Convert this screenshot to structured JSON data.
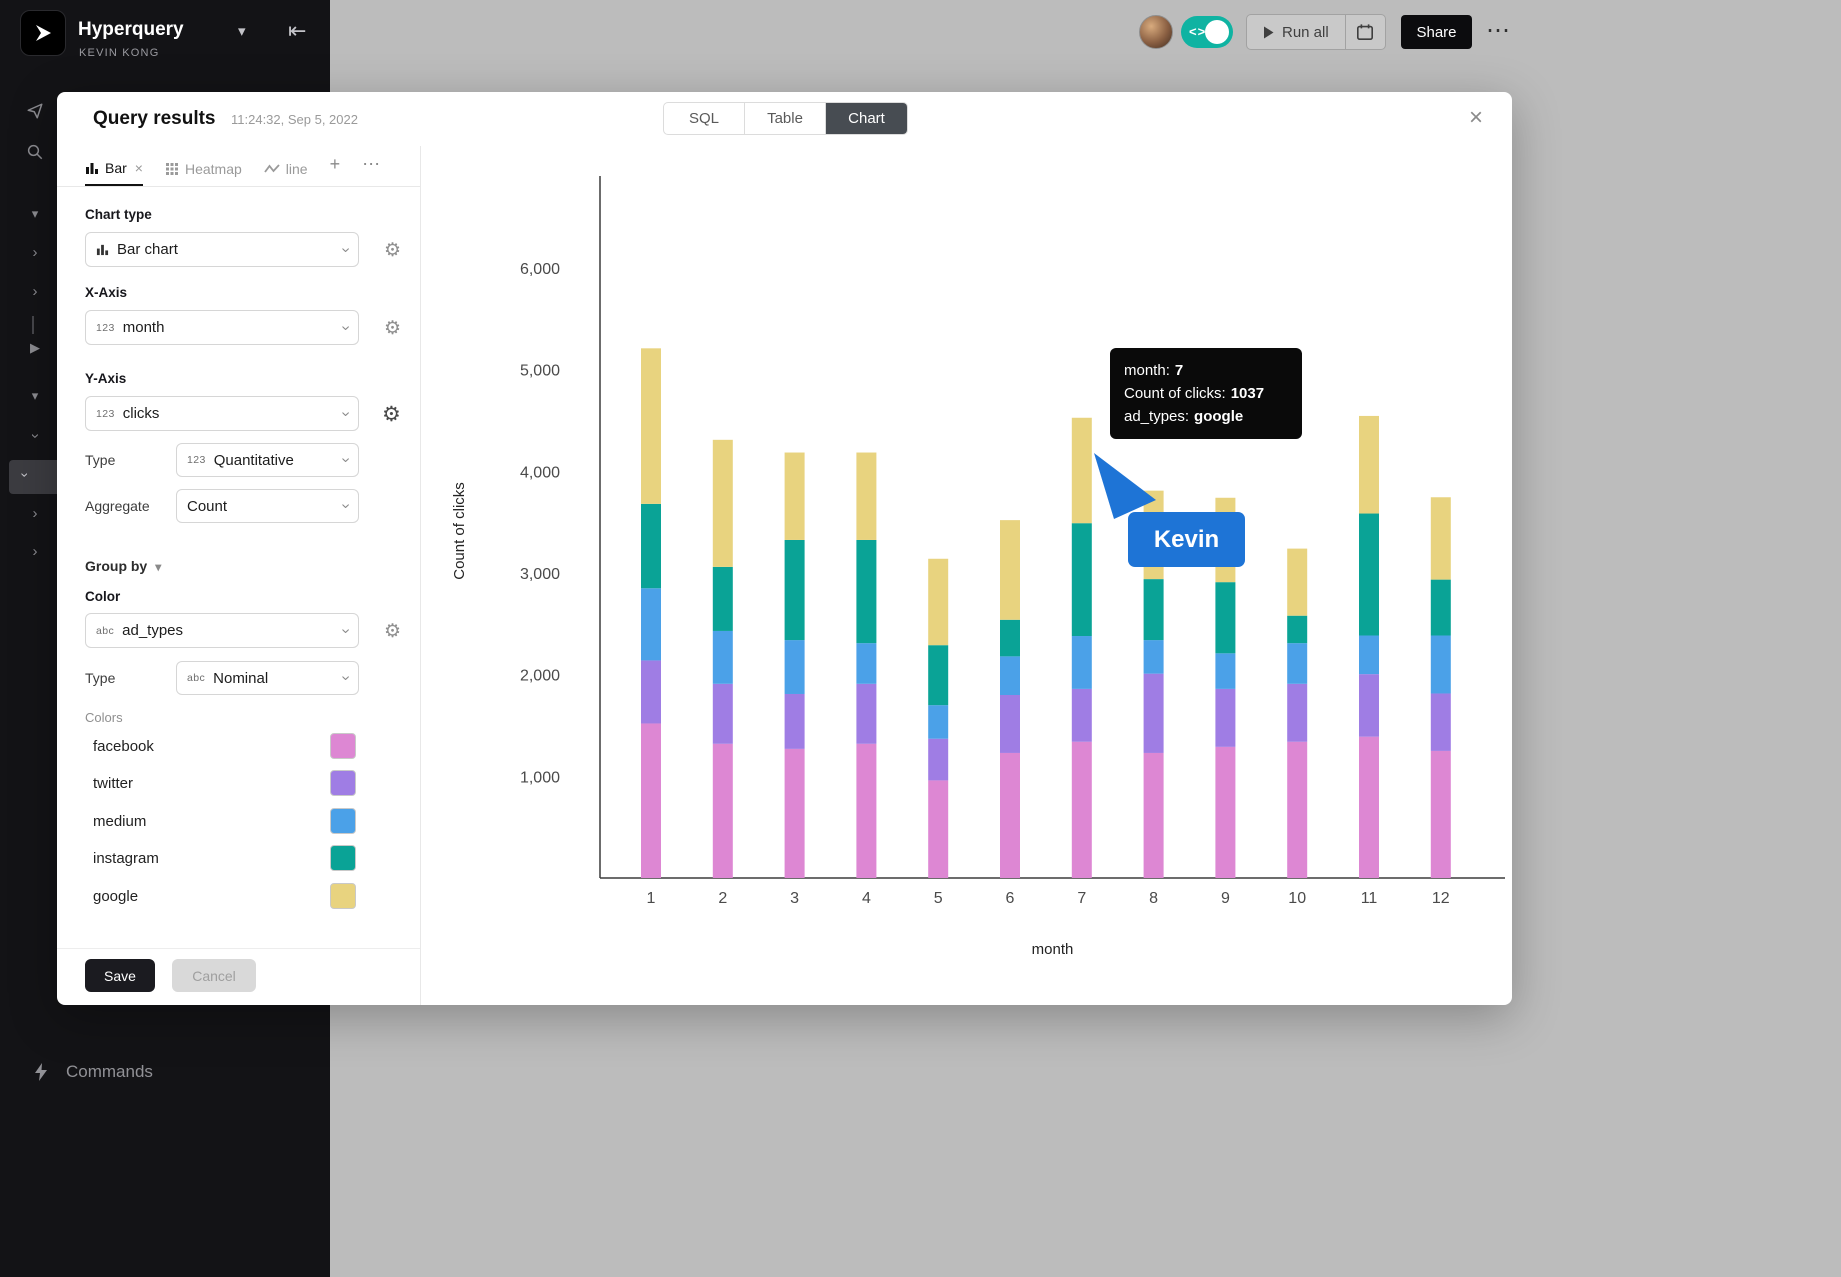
{
  "topbar": {
    "app_name": "Hyperquery",
    "workspace": "KEVIN KONG",
    "run_all": "Run all",
    "share": "Share",
    "more": "⋯"
  },
  "sidebar": {
    "commands": "Commands"
  },
  "modal": {
    "title": "Query results",
    "timestamp": "11:24:32, Sep 5, 2022",
    "tabs": {
      "sql": "SQL",
      "table": "Table",
      "chart": "Chart"
    },
    "close": "×"
  },
  "config": {
    "tab_bar": "Bar",
    "tab_bar_close": "×",
    "tab_heatmap": "Heatmap",
    "tab_line": "line",
    "tab_add": "+",
    "tab_more": "⋯",
    "chart_type_label": "Chart type",
    "chart_type_value": "Bar chart",
    "x_axis_label": "X-Axis",
    "x_axis_prefix": "123",
    "x_axis_value": "month",
    "y_axis_label": "Y-Axis",
    "y_axis_prefix": "123",
    "y_axis_value": "clicks",
    "type_label": "Type",
    "y_type_prefix": "123",
    "y_type_value": "Quantitative",
    "aggregate_label": "Aggregate",
    "aggregate_value": "Count",
    "group_by_label": "Group by",
    "color_label": "Color",
    "color_prefix": "abc",
    "color_value": "ad_types",
    "color_type_label": "Type",
    "color_type_prefix": "abc",
    "color_type_value": "Nominal",
    "colors_label": "Colors",
    "legend": [
      {
        "label": "facebook",
        "color": "#dd87d3"
      },
      {
        "label": "twitter",
        "color": "#9f7de4"
      },
      {
        "label": "medium",
        "color": "#4ba1e8"
      },
      {
        "label": "instagram",
        "color": "#0aa396"
      },
      {
        "label": "google",
        "color": "#e8d37f"
      }
    ],
    "save": "Save",
    "cancel": "Cancel"
  },
  "tooltip": {
    "lines": [
      {
        "key": "month:",
        "value": "7"
      },
      {
        "key": "Count of clicks:",
        "value": "1037"
      },
      {
        "key": "ad_types:",
        "value": "google"
      }
    ]
  },
  "cursor": {
    "name": "Kevin",
    "color": "#1e74d6"
  },
  "chart_data": {
    "type": "bar",
    "stacked": true,
    "title": "",
    "xlabel": "month",
    "ylabel": "Count of clicks",
    "categories": [
      "1",
      "2",
      "3",
      "4",
      "5",
      "6",
      "7",
      "8",
      "9",
      "10",
      "11",
      "12"
    ],
    "yticks": [
      1000,
      2000,
      3000,
      4000,
      5000,
      6000
    ],
    "ylim": [
      0,
      6000
    ],
    "legend_position": "left-panel",
    "grid": false,
    "series": [
      {
        "name": "facebook",
        "color": "#dd87d3",
        "values": [
          1520,
          1320,
          1270,
          1320,
          960,
          1230,
          1340,
          1230,
          1290,
          1340,
          1390,
          1250
        ]
      },
      {
        "name": "twitter",
        "color": "#9f7de4",
        "values": [
          620,
          590,
          540,
          590,
          410,
          570,
          520,
          780,
          570,
          570,
          615,
          565
        ]
      },
      {
        "name": "medium",
        "color": "#4ba1e8",
        "values": [
          710,
          520,
          530,
          400,
          330,
          380,
          520,
          330,
          350,
          400,
          380,
          570
        ]
      },
      {
        "name": "instagram",
        "color": "#0aa396",
        "values": [
          830,
          630,
          985,
          1015,
          590,
          360,
          1110,
          600,
          700,
          270,
          1200,
          550
        ]
      },
      {
        "name": "google",
        "color": "#e8d37f",
        "values": [
          1530,
          1250,
          860,
          860,
          850,
          980,
          1037,
          870,
          830,
          660,
          960,
          810
        ]
      }
    ]
  }
}
